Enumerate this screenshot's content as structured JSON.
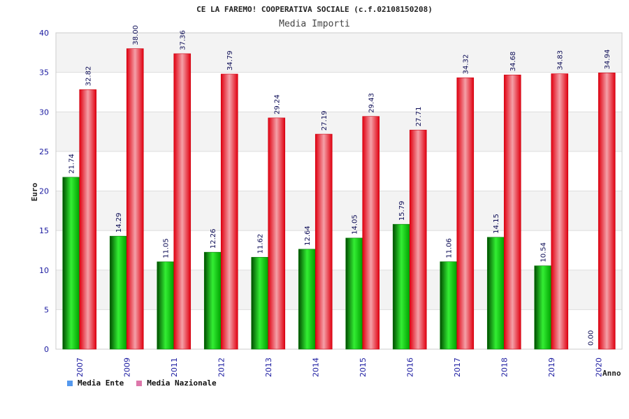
{
  "chart_data": {
    "type": "bar",
    "title": "CE LA FAREMO! COOPERATIVA SOCIALE (c.f.02108150208)",
    "subtitle": "Media Importi",
    "ylabel": "Euro",
    "xlabel": "Anno",
    "ylim": [
      0,
      40
    ],
    "yticks": [
      0,
      5,
      10,
      15,
      20,
      25,
      30,
      35,
      40
    ],
    "categories": [
      "2007",
      "2009",
      "2011",
      "2012",
      "2013",
      "2014",
      "2015",
      "2016",
      "2017",
      "2018",
      "2019",
      "2020"
    ],
    "series": [
      {
        "name": "Media Ente",
        "values": [
          21.74,
          14.29,
          11.05,
          12.26,
          11.62,
          12.64,
          14.05,
          15.79,
          11.06,
          14.15,
          10.54,
          0.0
        ],
        "labels": [
          "21.74",
          "14.29",
          "11.05",
          "12.26",
          "11.62",
          "12.64",
          "14.05",
          "15.79",
          "11.06",
          "14.15",
          "10.54",
          "0.00"
        ],
        "color": "#00aa00"
      },
      {
        "name": "Media Nazionale",
        "values": [
          32.82,
          38.0,
          37.36,
          34.79,
          29.24,
          27.19,
          29.43,
          27.71,
          34.32,
          34.68,
          34.83,
          34.94
        ],
        "labels": [
          "32.82",
          "38.00",
          "37.36",
          "34.79",
          "29.24",
          "27.19",
          "29.43",
          "27.71",
          "34.32",
          "34.68",
          "34.83",
          "34.94"
        ],
        "color": "#e8141e"
      }
    ],
    "legend": [
      {
        "label": "Media Ente",
        "color": "#5599ee"
      },
      {
        "label": "Media Nazionale",
        "color": "#dd77aa"
      }
    ],
    "grid": true,
    "legend_position": "bottom-left"
  }
}
